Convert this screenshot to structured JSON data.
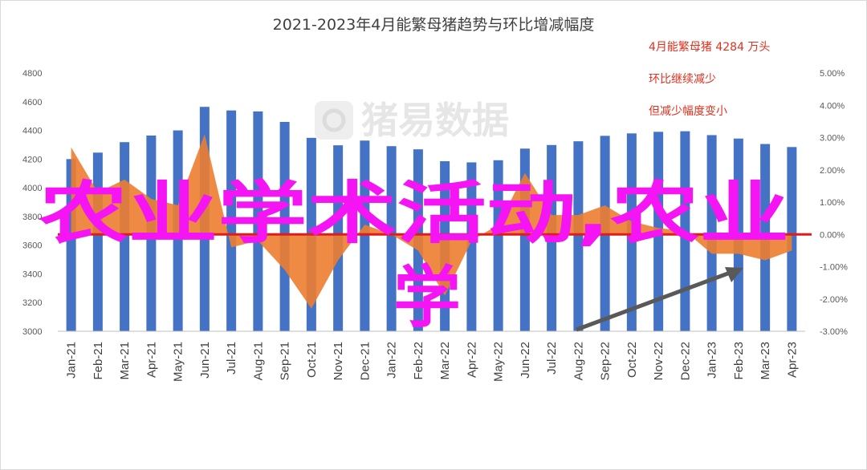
{
  "colors": {
    "bar": "#4472c4",
    "area": "#ed7d31",
    "zero_line": "#e31a1c",
    "arrow": "#595959",
    "note": "#e0301e",
    "overlay_text": "#f414f4",
    "watermark": "#e6e6e6"
  },
  "watermark": {
    "text": "猪易数据",
    "icon": "pig-logo-icon"
  },
  "overlay": {
    "line1": "农业学术活动,农业",
    "line2": "学"
  },
  "annotations": [
    "4月能繁母猪 4284 万头",
    "环比继续减少",
    "但减少幅度变小"
  ],
  "chart_data": {
    "type": "bar",
    "title": "2021-2023年4月能繁母猪趋势与环比增减幅度",
    "categories": [
      "Jan-21",
      "Feb-21",
      "Mar-21",
      "Apr-21",
      "May-21",
      "Jun-21",
      "Jul-21",
      "Aug-21",
      "Sep-21",
      "Oct-21",
      "Nov-21",
      "Dec-21",
      "Jan-22",
      "Feb-22",
      "Mar-22",
      "Apr-22",
      "May-22",
      "Jun-22",
      "Jul-22",
      "Aug-22",
      "Sep-22",
      "Oct-22",
      "Nov-22",
      "Dec-22",
      "Jan-23",
      "Feb-23",
      "Mar-23",
      "Apr-23"
    ],
    "y_left": {
      "min": 3000,
      "max": 4800,
      "ticks": [
        3000,
        3200,
        3400,
        3600,
        3800,
        4000,
        4200,
        4400,
        4600,
        4800
      ]
    },
    "y_right": {
      "min": -3,
      "max": 5,
      "ticks": [
        "-3.00%",
        "-2.00%",
        "-1.00%",
        "0.00%",
        "1.00%",
        "2.00%",
        "3.00%",
        "4.00%",
        "5.00%"
      ]
    },
    "series": [
      {
        "type": "bar",
        "axis": "left",
        "values": [
          4200,
          4245,
          4318,
          4364,
          4400,
          4564,
          4539,
          4532,
          4459,
          4348,
          4296,
          4329,
          4290,
          4268,
          4185,
          4177,
          4192,
          4273,
          4298,
          4324,
          4362,
          4379,
          4390,
          4394,
          4367,
          4343,
          4305,
          4284
        ]
      },
      {
        "type": "area",
        "axis": "right",
        "values": [
          2.7,
          1.3,
          1.7,
          1.1,
          0.9,
          3.1,
          -0.4,
          -0.2,
          -1.1,
          -2.3,
          -0.8,
          0.3,
          0.0,
          -0.5,
          -1.9,
          -0.2,
          0.3,
          1.9,
          0.6,
          0.6,
          0.9,
          0.4,
          0.2,
          0.1,
          -0.6,
          -0.6,
          -0.8,
          -0.5
        ]
      }
    ],
    "grid": false,
    "legend": "none"
  }
}
